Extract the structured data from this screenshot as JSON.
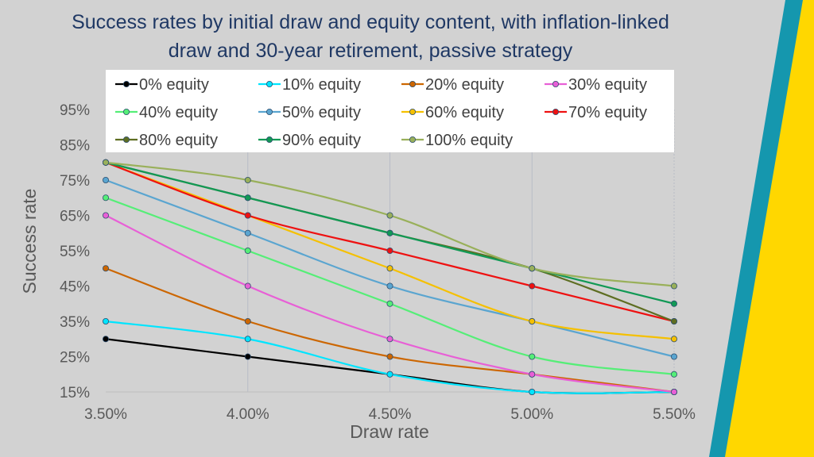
{
  "chart_data": {
    "type": "line",
    "title_lines": [
      "Success rates by initial draw and equity content, with inflation-linked",
      "draw and 30-year retirement, passive strategy"
    ],
    "xlabel": "Draw rate",
    "ylabel": "Success rate",
    "categories": [
      "3.50%",
      "4.00%",
      "4.50%",
      "5.00%",
      "5.50%"
    ],
    "y_ticks": [
      "15%",
      "25%",
      "35%",
      "45%",
      "55%",
      "65%",
      "75%",
      "85%",
      "95%"
    ],
    "ylim": [
      15,
      95
    ],
    "legend_position": "top",
    "series": [
      {
        "name": "0% equity",
        "color": "#000000",
        "values": [
          30,
          25,
          20,
          15,
          15
        ]
      },
      {
        "name": "10% equity",
        "color": "#00e5ff",
        "values": [
          35,
          30,
          20,
          15,
          15
        ]
      },
      {
        "name": "20% equity",
        "color": "#cc6600",
        "values": [
          50,
          35,
          25,
          20,
          15
        ]
      },
      {
        "name": "30% equity",
        "color": "#e85fd6",
        "values": [
          65,
          45,
          30,
          20,
          15
        ]
      },
      {
        "name": "40% equity",
        "color": "#55ee77",
        "values": [
          70,
          55,
          40,
          25,
          20
        ]
      },
      {
        "name": "50% equity",
        "color": "#5aa5d0",
        "values": [
          75,
          60,
          45,
          35,
          25
        ]
      },
      {
        "name": "60% equity",
        "color": "#f5c000",
        "values": [
          80,
          65,
          50,
          35,
          30
        ]
      },
      {
        "name": "70% equity",
        "color": "#ee1111",
        "values": [
          80,
          65,
          55,
          45,
          35
        ]
      },
      {
        "name": "80% equity",
        "color": "#5e6e22",
        "values": [
          80,
          70,
          60,
          50,
          35
        ]
      },
      {
        "name": "90% equity",
        "color": "#119955",
        "values": [
          80,
          70,
          60,
          50,
          40
        ]
      },
      {
        "name": "100% equity",
        "color": "#99b05a",
        "values": [
          80,
          75,
          65,
          50,
          45
        ]
      }
    ]
  }
}
